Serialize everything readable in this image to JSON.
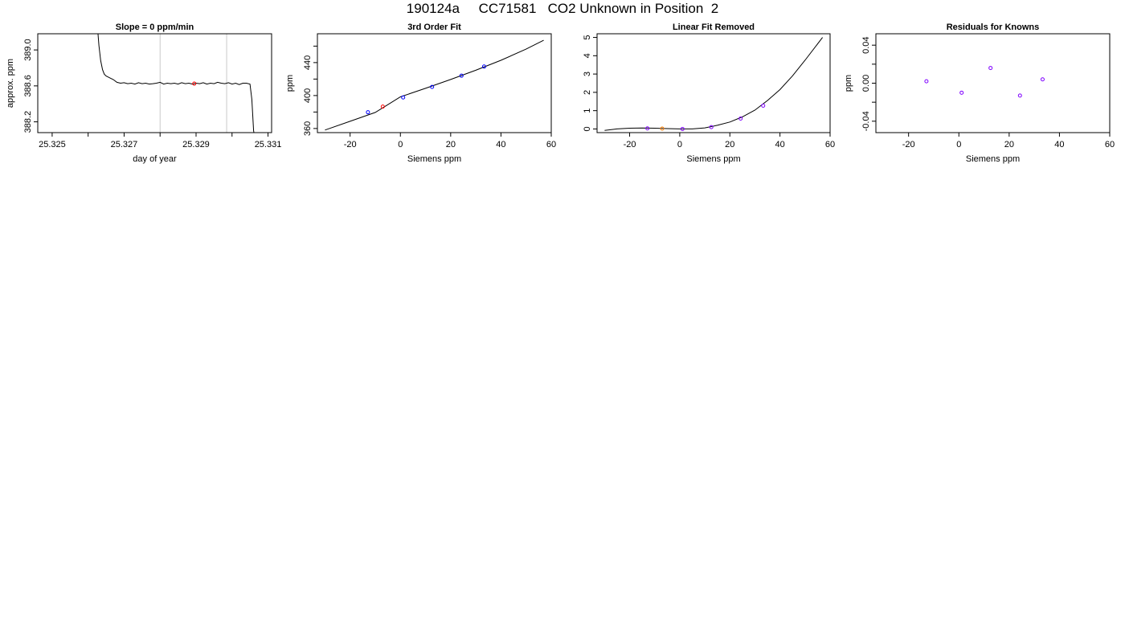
{
  "suptitle": "190124a     CC71581   CO2 Unknown in Position  2",
  "chart_data": [
    {
      "type": "line",
      "title": "Slope =  0  ppm/min",
      "xlabel": "day of year",
      "ylabel": "approx. ppm",
      "xlim": [
        25.3246,
        25.3311
      ],
      "ylim": [
        388.08,
        389.18
      ],
      "xticks": [
        25.325,
        25.326,
        25.327,
        25.328,
        25.329,
        25.33,
        25.331
      ],
      "xtick_labels": [
        "25.325",
        "",
        "25.327",
        "",
        "25.329",
        "",
        "25.331"
      ],
      "yticks": [
        388.2,
        388.6,
        389.0
      ],
      "ytick_labels": [
        "388.2",
        "388.6",
        "389.0"
      ],
      "vlines": [
        25.328,
        25.32985
      ],
      "vline_color": "#c8c8c8",
      "line_color": "#000000",
      "series": [
        {
          "x": [
            25.32625,
            25.3263,
            25.32635,
            25.3264,
            25.32645,
            25.3265,
            25.32655,
            25.3266,
            25.3267,
            25.3268,
            25.3269,
            25.327,
            25.3271,
            25.3272,
            25.3273,
            25.3274,
            25.3275,
            25.3276,
            25.3277,
            25.3278,
            25.3279,
            25.328,
            25.3281,
            25.3282,
            25.3283,
            25.3284,
            25.3285,
            25.3286,
            25.3287,
            25.3288,
            25.3289,
            25.329,
            25.3291,
            25.3292,
            25.3293,
            25.3294,
            25.3295,
            25.3296,
            25.3297,
            25.3298,
            25.3299,
            25.33,
            25.3301,
            25.3302,
            25.3303,
            25.3304,
            25.3305,
            25.33055,
            25.3306,
            25.33065
          ],
          "y": [
            389.3,
            389.05,
            388.88,
            388.78,
            388.73,
            388.71,
            388.7,
            388.69,
            388.67,
            388.64,
            388.63,
            388.635,
            388.625,
            388.63,
            388.62,
            388.635,
            388.625,
            388.63,
            388.62,
            388.625,
            388.63,
            388.64,
            388.62,
            388.63,
            388.625,
            388.63,
            388.62,
            388.635,
            388.625,
            388.63,
            388.62,
            388.63,
            388.625,
            388.635,
            388.62,
            388.63,
            388.625,
            388.64,
            388.63,
            388.625,
            388.635,
            388.62,
            388.63,
            388.615,
            388.63,
            388.63,
            388.62,
            388.45,
            388.1,
            388.0
          ]
        }
      ],
      "marker": {
        "x": 25.32895,
        "y": 388.625,
        "color": "#ff0000"
      }
    },
    {
      "type": "scatter",
      "title": "3rd Order Fit",
      "xlabel": "Siemens ppm",
      "ylabel": "ppm",
      "xlim": [
        -33,
        60
      ],
      "ylim": [
        355,
        475
      ],
      "xticks": [
        -20,
        0,
        20,
        40,
        60
      ],
      "xtick_labels": [
        "-20",
        "0",
        "20",
        "40",
        "60"
      ],
      "yticks": [
        360,
        380,
        400,
        420,
        440,
        460
      ],
      "ytick_labels": [
        "360",
        "",
        "400",
        "",
        "440",
        ""
      ],
      "fit_curve": {
        "x": [
          -30,
          -20,
          -10,
          0,
          10,
          20,
          30,
          40,
          50,
          57
        ],
        "y": [
          358.1,
          368.8,
          379.5,
          398.4,
          408.8,
          419.5,
          430.7,
          442.8,
          456.4,
          467.1
        ]
      },
      "points": [
        {
          "x": -12.9,
          "y": 379.7,
          "color": "#0000ff"
        },
        {
          "x": -7.0,
          "y": 386.6,
          "color": "#ff0000"
        },
        {
          "x": 1.1,
          "y": 397.7,
          "color": "#0000ff"
        },
        {
          "x": 12.6,
          "y": 410.5,
          "color": "#0000ff"
        },
        {
          "x": 24.3,
          "y": 424.1,
          "color": "#0000ff"
        },
        {
          "x": 33.3,
          "y": 435.2,
          "color": "#0000ff"
        }
      ]
    },
    {
      "type": "scatter",
      "title": "Linear Fit Removed",
      "xlabel": "Siemens ppm",
      "ylabel": "",
      "xlim": [
        -33,
        60
      ],
      "ylim": [
        -0.2,
        5.2
      ],
      "xticks": [
        -20,
        0,
        20,
        40,
        60
      ],
      "xtick_labels": [
        "-20",
        "0",
        "20",
        "40",
        "60"
      ],
      "yticks": [
        0,
        1,
        2,
        3,
        4,
        5
      ],
      "ytick_labels": [
        "0",
        "1",
        "2",
        "3",
        "4",
        "5"
      ],
      "fit_curve": {
        "x": [
          -30,
          -25,
          -20,
          -15,
          -10,
          -5,
          0,
          5,
          10,
          15,
          20,
          25,
          30,
          35,
          40,
          45,
          50,
          57
        ],
        "y": [
          -0.08,
          0.0,
          0.04,
          0.05,
          0.04,
          0.02,
          0.0,
          0.0,
          0.06,
          0.2,
          0.38,
          0.66,
          1.03,
          1.55,
          2.15,
          2.9,
          3.75,
          5.0
        ]
      },
      "points": [
        {
          "x": -12.9,
          "y": 0.03,
          "color": "#7f00ff"
        },
        {
          "x": -7.0,
          "y": 0.02,
          "color": "#ff7f00"
        },
        {
          "x": 1.1,
          "y": 0.0,
          "color": "#7f00ff"
        },
        {
          "x": 12.6,
          "y": 0.1,
          "color": "#7f00ff"
        },
        {
          "x": 24.3,
          "y": 0.57,
          "color": "#7f00ff"
        },
        {
          "x": 33.3,
          "y": 1.27,
          "color": "#7f00ff"
        }
      ]
    },
    {
      "type": "scatter",
      "title": "Residuals for Knowns",
      "xlabel": "Siemens ppm",
      "ylabel": "ppm",
      "xlim": [
        -33,
        60
      ],
      "ylim": [
        -0.052,
        0.052
      ],
      "xticks": [
        -20,
        0,
        20,
        40,
        60
      ],
      "xtick_labels": [
        "-20",
        "0",
        "20",
        "40",
        "60"
      ],
      "yticks": [
        -0.04,
        -0.02,
        0,
        0.02,
        0.04
      ],
      "ytick_labels": [
        "-0.04",
        "",
        "0.00",
        "",
        "0.04"
      ],
      "points": [
        {
          "x": -12.9,
          "y": 0.002,
          "color": "#7f00ff"
        },
        {
          "x": 1.1,
          "y": -0.01,
          "color": "#7f00ff"
        },
        {
          "x": 12.6,
          "y": 0.016,
          "color": "#7f00ff"
        },
        {
          "x": 24.3,
          "y": -0.013,
          "color": "#7f00ff"
        },
        {
          "x": 33.3,
          "y": 0.004,
          "color": "#7f00ff"
        }
      ]
    }
  ]
}
